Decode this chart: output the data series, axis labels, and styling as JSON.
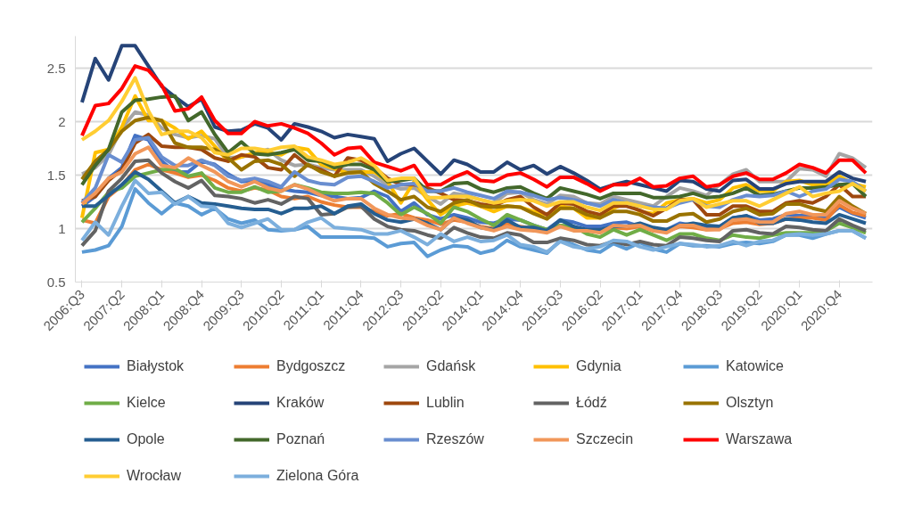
{
  "chart_data": {
    "type": "line",
    "categories": [
      "2006:Q3",
      null,
      null,
      "2007:Q2",
      null,
      null,
      "2008:Q1",
      null,
      null,
      "2008:Q4",
      null,
      null,
      "2009:Q3",
      null,
      null,
      "2010:Q2",
      null,
      null,
      "2011:Q1",
      null,
      null,
      "2011:Q4",
      null,
      null,
      "2012:Q3",
      null,
      null,
      "2013:Q2",
      null,
      null,
      "2014:Q1",
      null,
      null,
      "2014:Q4",
      null,
      null,
      "2015:Q3",
      null,
      null,
      "2016:Q2",
      null,
      null,
      "2017:Q1",
      null,
      null,
      "2017:Q4",
      null,
      null,
      "2018:Q3",
      null,
      null,
      "2019:Q2",
      null,
      null,
      "2020:Q1",
      null,
      null,
      "2020:Q4",
      null,
      null
    ],
    "ylim": [
      0.5,
      2.8
    ],
    "yticks": [
      0.5,
      1,
      1.5,
      2,
      2.5
    ],
    "grid": "y",
    "legend": "bottom",
    "line_style": "solid",
    "marker": "none",
    "series": [
      {
        "name": "Białystok",
        "color": "#4472c4",
        "values": [
          1.21,
          1.3,
          1.47,
          1.57,
          1.87,
          1.83,
          1.63,
          1.53,
          1.53,
          1.63,
          1.6,
          1.51,
          1.44,
          1.45,
          1.41,
          1.37,
          1.35,
          1.34,
          1.31,
          1.3,
          1.28,
          1.29,
          1.35,
          1.3,
          1.16,
          1.24,
          1.13,
          1.09,
          1.13,
          1.1,
          1.06,
          1.05,
          1.09,
          1.08,
          1.03,
          0.99,
          1.08,
          1.06,
          1.02,
          1.02,
          1.05,
          1.06,
          1.02,
          0.99,
          0.99,
          1.05,
          1.03,
          1.01,
          1.02,
          1.1,
          1.12,
          1.08,
          1.09,
          1.13,
          1.12,
          1.12,
          1.1,
          1.2,
          1.14,
          1.1
        ]
      },
      {
        "name": "Bydgoszcz",
        "color": "#ed7d31",
        "values": [
          1.08,
          1.05,
          1.3,
          1.4,
          1.55,
          1.6,
          1.55,
          1.52,
          1.48,
          1.5,
          1.45,
          1.38,
          1.35,
          1.38,
          1.36,
          1.3,
          1.28,
          1.3,
          1.25,
          1.22,
          1.2,
          1.2,
          1.16,
          1.12,
          1.14,
          1.1,
          1.08,
          1.04,
          1.08,
          1.06,
          1.02,
          1.0,
          1.04,
          1.02,
          1.0,
          0.98,
          1.03,
          1.0,
          0.98,
          0.97,
          1.01,
          1.0,
          1.02,
          0.98,
          0.97,
          1.02,
          1.01,
          0.99,
          1.0,
          1.05,
          1.06,
          1.04,
          1.05,
          1.09,
          1.1,
          1.1,
          1.08,
          1.22,
          1.15,
          1.12
        ]
      },
      {
        "name": "Gdańsk",
        "color": "#a5a5a5",
        "values": [
          1.51,
          1.57,
          1.69,
          1.94,
          2.09,
          2.06,
          1.94,
          1.88,
          1.85,
          1.87,
          1.84,
          1.66,
          1.67,
          1.7,
          1.74,
          1.64,
          1.59,
          1.6,
          1.57,
          1.55,
          1.55,
          1.55,
          1.49,
          1.41,
          1.37,
          1.38,
          1.3,
          1.23,
          1.33,
          1.31,
          1.27,
          1.24,
          1.33,
          1.34,
          1.27,
          1.23,
          1.31,
          1.3,
          1.24,
          1.23,
          1.3,
          1.27,
          1.24,
          1.21,
          1.3,
          1.38,
          1.35,
          1.31,
          1.41,
          1.51,
          1.55,
          1.44,
          1.44,
          1.44,
          1.56,
          1.55,
          1.49,
          1.7,
          1.66,
          1.57
        ]
      },
      {
        "name": "Gdynia",
        "color": "#ffc000",
        "values": [
          1.1,
          1.71,
          1.74,
          1.95,
          2.24,
          2.01,
          2.01,
          1.94,
          1.84,
          1.91,
          1.77,
          1.63,
          1.67,
          1.71,
          1.71,
          1.69,
          1.76,
          1.74,
          1.6,
          1.56,
          1.52,
          1.53,
          1.53,
          1.44,
          1.24,
          1.44,
          1.27,
          1.13,
          1.21,
          1.24,
          1.21,
          1.16,
          1.21,
          1.2,
          1.16,
          1.13,
          1.21,
          1.19,
          1.1,
          1.1,
          1.19,
          1.24,
          1.16,
          1.14,
          1.24,
          1.27,
          1.28,
          1.24,
          1.27,
          1.38,
          1.41,
          1.35,
          1.35,
          1.44,
          1.45,
          1.41,
          1.41,
          1.49,
          1.42,
          1.39
        ]
      },
      {
        "name": "Katowice",
        "color": "#5b9bd5",
        "values": [
          0.78,
          0.8,
          0.84,
          1.02,
          1.37,
          1.24,
          1.14,
          1.24,
          1.21,
          1.13,
          1.19,
          1.09,
          1.05,
          1.08,
          0.99,
          0.98,
          0.99,
          1.02,
          0.92,
          0.92,
          0.92,
          0.92,
          0.91,
          0.83,
          0.86,
          0.87,
          0.74,
          0.8,
          0.84,
          0.83,
          0.77,
          0.8,
          0.89,
          0.83,
          0.8,
          0.77,
          0.89,
          0.85,
          0.8,
          0.78,
          0.86,
          0.81,
          0.87,
          0.81,
          0.78,
          0.86,
          0.84,
          0.84,
          0.83,
          0.86,
          0.87,
          0.86,
          0.88,
          0.94,
          0.94,
          0.91,
          0.95,
          0.98,
          0.98,
          0.91
        ]
      },
      {
        "name": "Kielce",
        "color": "#70ad47",
        "values": [
          1.06,
          1.19,
          1.34,
          1.38,
          1.49,
          1.52,
          1.55,
          1.56,
          1.49,
          1.52,
          1.38,
          1.34,
          1.34,
          1.39,
          1.34,
          1.35,
          1.41,
          1.38,
          1.34,
          1.33,
          1.33,
          1.34,
          1.33,
          1.24,
          1.13,
          1.2,
          1.14,
          1.05,
          1.2,
          1.16,
          1.09,
          1.03,
          1.13,
          1.08,
          1.03,
          0.99,
          1.03,
          1.02,
          0.95,
          0.92,
          0.99,
          0.94,
          0.99,
          0.94,
          0.89,
          0.95,
          0.95,
          0.91,
          0.89,
          0.94,
          0.92,
          0.91,
          0.94,
          0.96,
          0.96,
          0.96,
          0.98,
          1.05,
          1.01,
          0.96
        ]
      },
      {
        "name": "Kraków",
        "color": "#264478",
        "values": [
          2.18,
          2.59,
          2.39,
          2.71,
          2.71,
          2.52,
          2.33,
          2.23,
          2.14,
          2.21,
          1.95,
          1.91,
          1.92,
          1.98,
          1.94,
          1.83,
          1.98,
          1.95,
          1.91,
          1.85,
          1.88,
          1.86,
          1.84,
          1.63,
          1.7,
          1.75,
          1.63,
          1.51,
          1.64,
          1.6,
          1.53,
          1.53,
          1.62,
          1.55,
          1.59,
          1.51,
          1.58,
          1.52,
          1.45,
          1.37,
          1.41,
          1.44,
          1.41,
          1.38,
          1.35,
          1.45,
          1.44,
          1.37,
          1.35,
          1.45,
          1.46,
          1.37,
          1.37,
          1.42,
          1.44,
          1.44,
          1.44,
          1.53,
          1.47,
          1.44
        ]
      },
      {
        "name": "Lublin",
        "color": "#9e480e",
        "values": [
          1.26,
          1.3,
          1.45,
          1.55,
          1.8,
          1.88,
          1.77,
          1.76,
          1.76,
          1.74,
          1.66,
          1.63,
          1.69,
          1.67,
          1.57,
          1.55,
          1.69,
          1.59,
          1.55,
          1.49,
          1.66,
          1.64,
          1.57,
          1.47,
          1.41,
          1.41,
          1.38,
          1.33,
          1.27,
          1.26,
          1.23,
          1.21,
          1.27,
          1.3,
          1.2,
          1.13,
          1.24,
          1.23,
          1.16,
          1.13,
          1.21,
          1.21,
          1.17,
          1.12,
          1.19,
          1.27,
          1.27,
          1.13,
          1.13,
          1.21,
          1.21,
          1.16,
          1.16,
          1.24,
          1.26,
          1.24,
          1.3,
          1.41,
          1.3,
          1.3
        ]
      },
      {
        "name": "Łódź",
        "color": "#636363",
        "values": [
          0.84,
          0.98,
          1.35,
          1.47,
          1.63,
          1.64,
          1.52,
          1.44,
          1.38,
          1.45,
          1.31,
          1.3,
          1.28,
          1.24,
          1.27,
          1.23,
          1.3,
          1.28,
          1.13,
          1.14,
          1.2,
          1.21,
          1.09,
          1.02,
          0.99,
          0.98,
          0.94,
          0.91,
          1.01,
          0.96,
          0.92,
          0.91,
          0.96,
          0.94,
          0.87,
          0.87,
          0.91,
          0.89,
          0.85,
          0.84,
          0.88,
          0.85,
          0.88,
          0.85,
          0.84,
          0.92,
          0.91,
          0.89,
          0.88,
          0.98,
          0.99,
          0.96,
          0.95,
          1.02,
          1.01,
          0.99,
          0.98,
          1.09,
          1.03,
          0.98
        ]
      },
      {
        "name": "Olsztyn",
        "color": "#997300",
        "values": [
          1.46,
          1.63,
          1.74,
          1.91,
          2.01,
          2.04,
          2.01,
          1.8,
          1.76,
          1.76,
          1.74,
          1.66,
          1.55,
          1.63,
          1.64,
          1.6,
          1.49,
          1.6,
          1.53,
          1.49,
          1.52,
          1.53,
          1.42,
          1.35,
          1.27,
          1.3,
          1.2,
          1.16,
          1.24,
          1.27,
          1.21,
          1.2,
          1.21,
          1.2,
          1.14,
          1.09,
          1.19,
          1.19,
          1.13,
          1.1,
          1.16,
          1.16,
          1.13,
          1.07,
          1.07,
          1.13,
          1.14,
          1.06,
          1.09,
          1.16,
          1.19,
          1.13,
          1.14,
          1.23,
          1.23,
          1.19,
          1.16,
          1.3,
          1.21,
          1.14
        ]
      },
      {
        "name": "Opole",
        "color": "#255e91",
        "values": [
          1.21,
          1.21,
          1.31,
          1.41,
          1.53,
          1.46,
          1.35,
          1.24,
          1.3,
          1.24,
          1.23,
          1.21,
          1.19,
          1.18,
          1.18,
          1.14,
          1.19,
          1.19,
          1.21,
          1.14,
          1.21,
          1.23,
          1.14,
          1.08,
          1.06,
          1.09,
          1.05,
          0.99,
          1.1,
          1.08,
          1.01,
          0.99,
          1.08,
          1.01,
          1.01,
          0.98,
          1.08,
          1.02,
          0.99,
          0.99,
          1.02,
          1.02,
          1.05,
          1.01,
          0.99,
          1.03,
          1.05,
          1.03,
          1.02,
          1.1,
          1.12,
          1.05,
          1.05,
          1.09,
          1.08,
          1.06,
          1.05,
          1.13,
          1.09,
          1.05
        ]
      },
      {
        "name": "Poznań",
        "color": "#43682b",
        "values": [
          1.41,
          1.59,
          1.74,
          2.09,
          2.2,
          2.21,
          2.23,
          2.24,
          2.01,
          2.09,
          1.88,
          1.71,
          1.81,
          1.7,
          1.69,
          1.71,
          1.74,
          1.64,
          1.63,
          1.57,
          1.6,
          1.6,
          1.55,
          1.44,
          1.45,
          1.47,
          1.35,
          1.35,
          1.42,
          1.43,
          1.37,
          1.34,
          1.38,
          1.39,
          1.33,
          1.28,
          1.38,
          1.35,
          1.32,
          1.28,
          1.33,
          1.33,
          1.33,
          1.29,
          1.29,
          1.3,
          1.33,
          1.29,
          1.3,
          1.33,
          1.38,
          1.31,
          1.32,
          1.35,
          1.38,
          1.38,
          1.39,
          1.41,
          1.42,
          1.3
        ]
      },
      {
        "name": "Rzeszów",
        "color": "#698ed0",
        "values": [
          1.24,
          1.38,
          1.69,
          1.62,
          1.83,
          1.85,
          1.67,
          1.59,
          1.59,
          1.64,
          1.59,
          1.49,
          1.45,
          1.47,
          1.44,
          1.39,
          1.53,
          1.45,
          1.42,
          1.41,
          1.48,
          1.49,
          1.44,
          1.38,
          1.41,
          1.42,
          1.35,
          1.35,
          1.38,
          1.34,
          1.31,
          1.28,
          1.35,
          1.34,
          1.31,
          1.27,
          1.29,
          1.27,
          1.24,
          1.21,
          1.27,
          1.24,
          1.21,
          1.2,
          1.19,
          1.24,
          1.27,
          1.21,
          1.2,
          1.27,
          1.31,
          1.3,
          1.31,
          1.35,
          1.3,
          1.35,
          1.37,
          1.46,
          1.44,
          1.35
        ]
      },
      {
        "name": "Szczecin",
        "color": "#f1975a",
        "values": [
          1.23,
          1.33,
          1.47,
          1.53,
          1.7,
          1.76,
          1.59,
          1.57,
          1.66,
          1.59,
          1.53,
          1.44,
          1.39,
          1.44,
          1.38,
          1.35,
          1.41,
          1.37,
          1.31,
          1.26,
          1.28,
          1.28,
          1.19,
          1.13,
          1.1,
          1.09,
          1.03,
          0.99,
          1.1,
          1.05,
          1.01,
          0.98,
          1.02,
          0.99,
          0.98,
          0.96,
          1.02,
          0.98,
          0.98,
          0.96,
          1.03,
          1.02,
          1.03,
          0.98,
          0.96,
          1.03,
          1.03,
          0.99,
          0.99,
          1.08,
          1.09,
          1.06,
          1.06,
          1.14,
          1.16,
          1.13,
          1.13,
          1.26,
          1.19,
          1.14
        ]
      },
      {
        "name": "Warszawa",
        "color": "#ff0000",
        "values": [
          1.87,
          2.15,
          2.17,
          2.31,
          2.52,
          2.48,
          2.34,
          2.1,
          2.12,
          2.23,
          2.01,
          1.89,
          1.89,
          2.0,
          1.96,
          1.98,
          1.94,
          1.89,
          1.8,
          1.69,
          1.75,
          1.76,
          1.62,
          1.58,
          1.54,
          1.59,
          1.41,
          1.41,
          1.48,
          1.53,
          1.45,
          1.44,
          1.5,
          1.52,
          1.46,
          1.39,
          1.48,
          1.48,
          1.42,
          1.35,
          1.41,
          1.41,
          1.47,
          1.39,
          1.4,
          1.47,
          1.49,
          1.39,
          1.41,
          1.49,
          1.52,
          1.46,
          1.46,
          1.52,
          1.6,
          1.57,
          1.52,
          1.64,
          1.64,
          1.52
        ]
      },
      {
        "name": "Wrocław",
        "color": "#ffcd33",
        "values": [
          1.83,
          1.91,
          2.01,
          2.19,
          2.41,
          2.1,
          1.88,
          1.91,
          1.91,
          1.85,
          1.71,
          1.69,
          1.75,
          1.75,
          1.73,
          1.76,
          1.77,
          1.67,
          1.64,
          1.6,
          1.62,
          1.66,
          1.59,
          1.45,
          1.47,
          1.47,
          1.29,
          1.29,
          1.3,
          1.3,
          1.27,
          1.24,
          1.26,
          1.27,
          1.26,
          1.21,
          1.25,
          1.25,
          1.2,
          1.17,
          1.24,
          1.24,
          1.21,
          1.18,
          1.18,
          1.26,
          1.28,
          1.2,
          1.23,
          1.26,
          1.26,
          1.21,
          1.27,
          1.33,
          1.39,
          1.3,
          1.33,
          1.35,
          1.42,
          1.35
        ]
      },
      {
        "name": "Zielona Góra",
        "color": "#7cafdd",
        "values": [
          0.89,
          1.06,
          0.94,
          1.21,
          1.45,
          1.33,
          1.34,
          1.23,
          1.3,
          1.21,
          1.2,
          1.05,
          1.01,
          1.05,
          1.09,
          0.99,
          0.99,
          1.06,
          1.1,
          1.01,
          1.0,
          0.99,
          0.95,
          0.95,
          0.98,
          0.92,
          0.85,
          0.95,
          0.88,
          0.92,
          0.88,
          0.89,
          0.94,
          0.85,
          0.83,
          0.78,
          0.88,
          0.83,
          0.81,
          0.83,
          0.89,
          0.88,
          0.83,
          0.8,
          0.83,
          0.86,
          0.85,
          0.83,
          0.84,
          0.88,
          0.84,
          0.88,
          0.89,
          0.94,
          0.95,
          0.94,
          0.95,
          0.98,
          0.98,
          0.91
        ]
      }
    ]
  }
}
